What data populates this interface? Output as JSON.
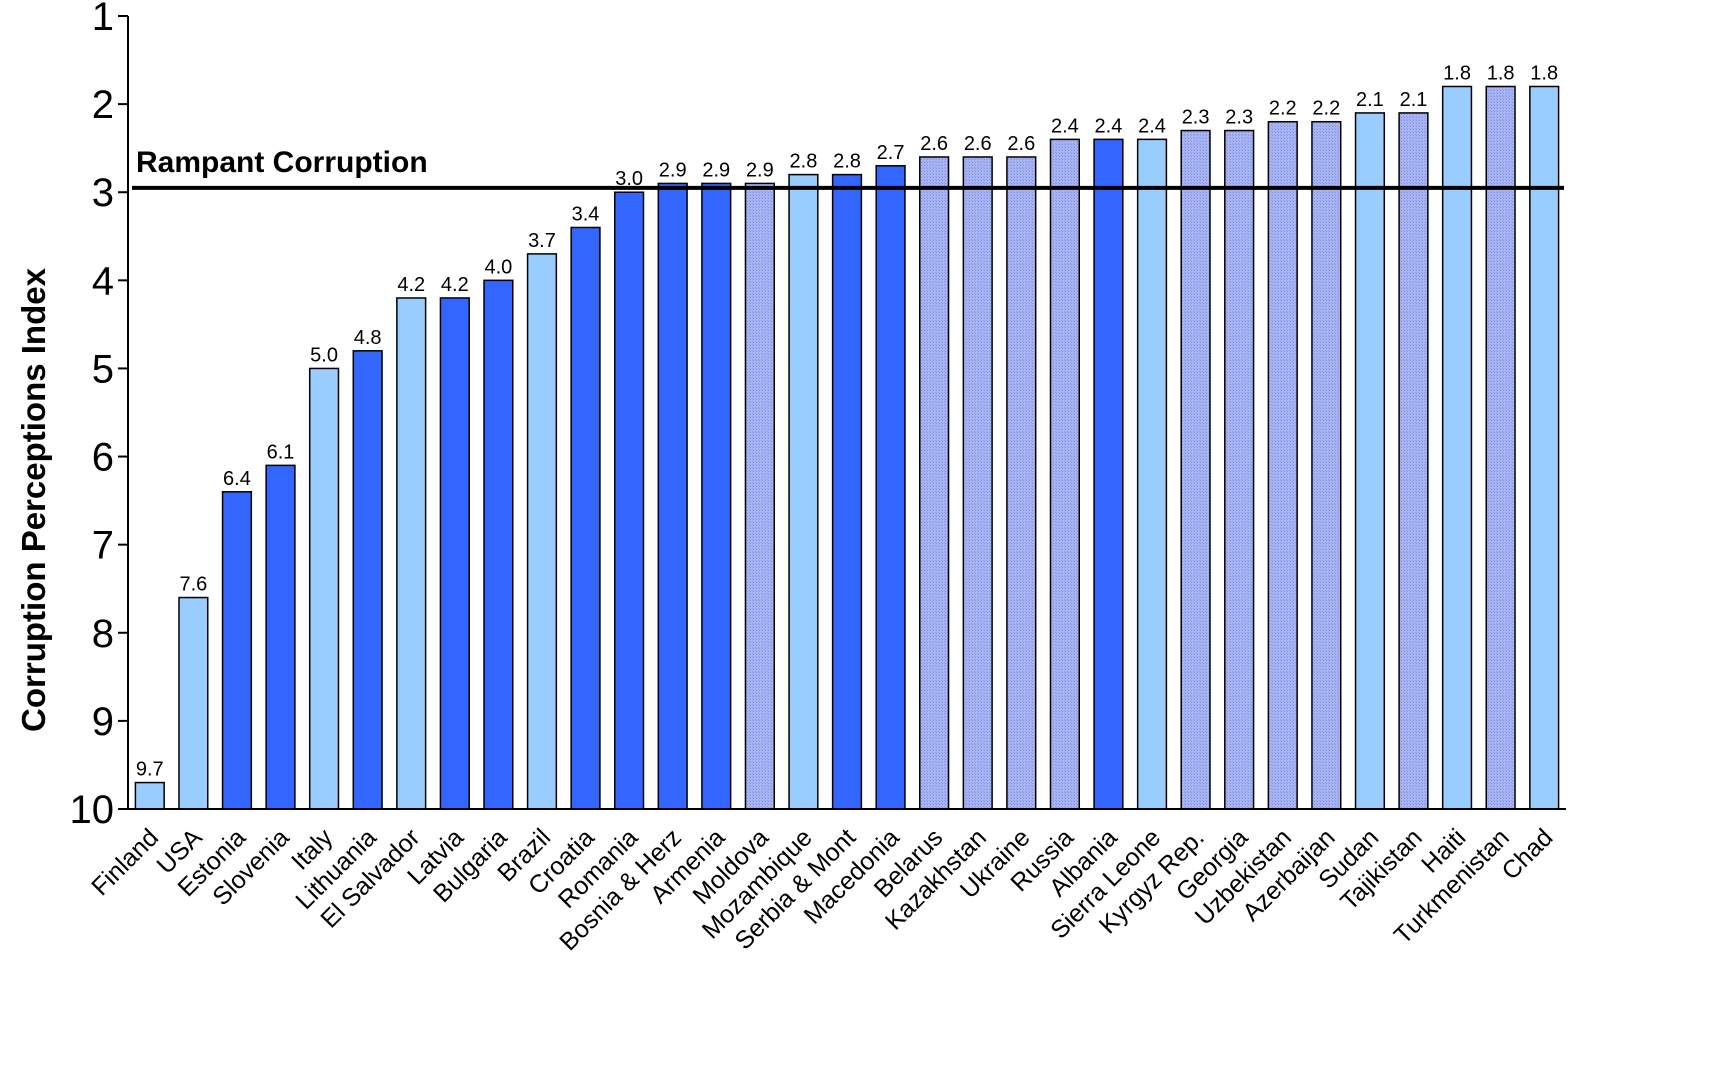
{
  "chart_data": {
    "type": "bar",
    "ylabel": "Corruption Perceptions Index",
    "ylim": [
      1,
      10
    ],
    "y_axis_inverted": true,
    "y_ticks": [
      "1",
      "2",
      "3",
      "4",
      "5",
      "6",
      "7",
      "8",
      "9",
      "10"
    ],
    "grid": false,
    "legend": "none",
    "categories": [
      "Finland",
      "USA",
      "Estonia",
      "Slovenia",
      "Italy",
      "Lithuania",
      "El Salvador",
      "Latvia",
      "Bulgaria",
      "Brazil",
      "Croatia",
      "Romania",
      "Bosnia & Herz",
      "Armenia",
      "Moldova",
      "Mozambique",
      "Serbia & Mont",
      "Macedonia",
      "Belarus",
      "Kazakhstan",
      "Ukraine",
      "Russia",
      "Albania",
      "Sierra Leone",
      "Kyrgyz Rep.",
      "Georgia",
      "Uzbekistan",
      "Azerbaijan",
      "Sudan",
      "Tajikistan",
      "Haiti",
      "Turkmenistan",
      "Chad"
    ],
    "values": [
      9.7,
      7.6,
      6.4,
      6.1,
      5.0,
      4.8,
      4.2,
      4.2,
      4.0,
      3.7,
      3.4,
      3.0,
      2.9,
      2.9,
      2.9,
      2.8,
      2.8,
      2.7,
      2.6,
      2.6,
      2.6,
      2.4,
      2.4,
      2.4,
      2.3,
      2.3,
      2.2,
      2.2,
      2.1,
      2.1,
      1.8,
      1.8,
      1.8
    ],
    "value_labels": [
      "9.7",
      "7.6",
      "6.4",
      "6.1",
      "5.0",
      "4.8",
      "4.2",
      "4.2",
      "4.0",
      "3.7",
      "3.4",
      "3.0",
      "2.9",
      "2.9",
      "2.9",
      "2.8",
      "2.8",
      "2.7",
      "2.6",
      "2.6",
      "2.6",
      "2.4",
      "2.4",
      "2.4",
      "2.3",
      "2.3",
      "2.2",
      "2.2",
      "2.1",
      "2.1",
      "1.8",
      "1.8",
      "1.8"
    ],
    "bar_styles": [
      "light",
      "light",
      "dark",
      "dark",
      "light",
      "dark",
      "light",
      "dark",
      "dark",
      "light",
      "dark",
      "dark",
      "dark",
      "dark",
      "medium",
      "light",
      "dark",
      "dark",
      "medium",
      "medium",
      "medium",
      "medium",
      "dark",
      "light",
      "medium",
      "medium",
      "medium",
      "medium",
      "light",
      "medium",
      "light",
      "medium",
      "light"
    ],
    "colors": {
      "light": "#99ccff",
      "dark": "#3366ff",
      "medium": "#9aa8ee",
      "axis": "#000000"
    },
    "threshold": {
      "value": 2.95,
      "label": "Rampant Corruption"
    }
  }
}
